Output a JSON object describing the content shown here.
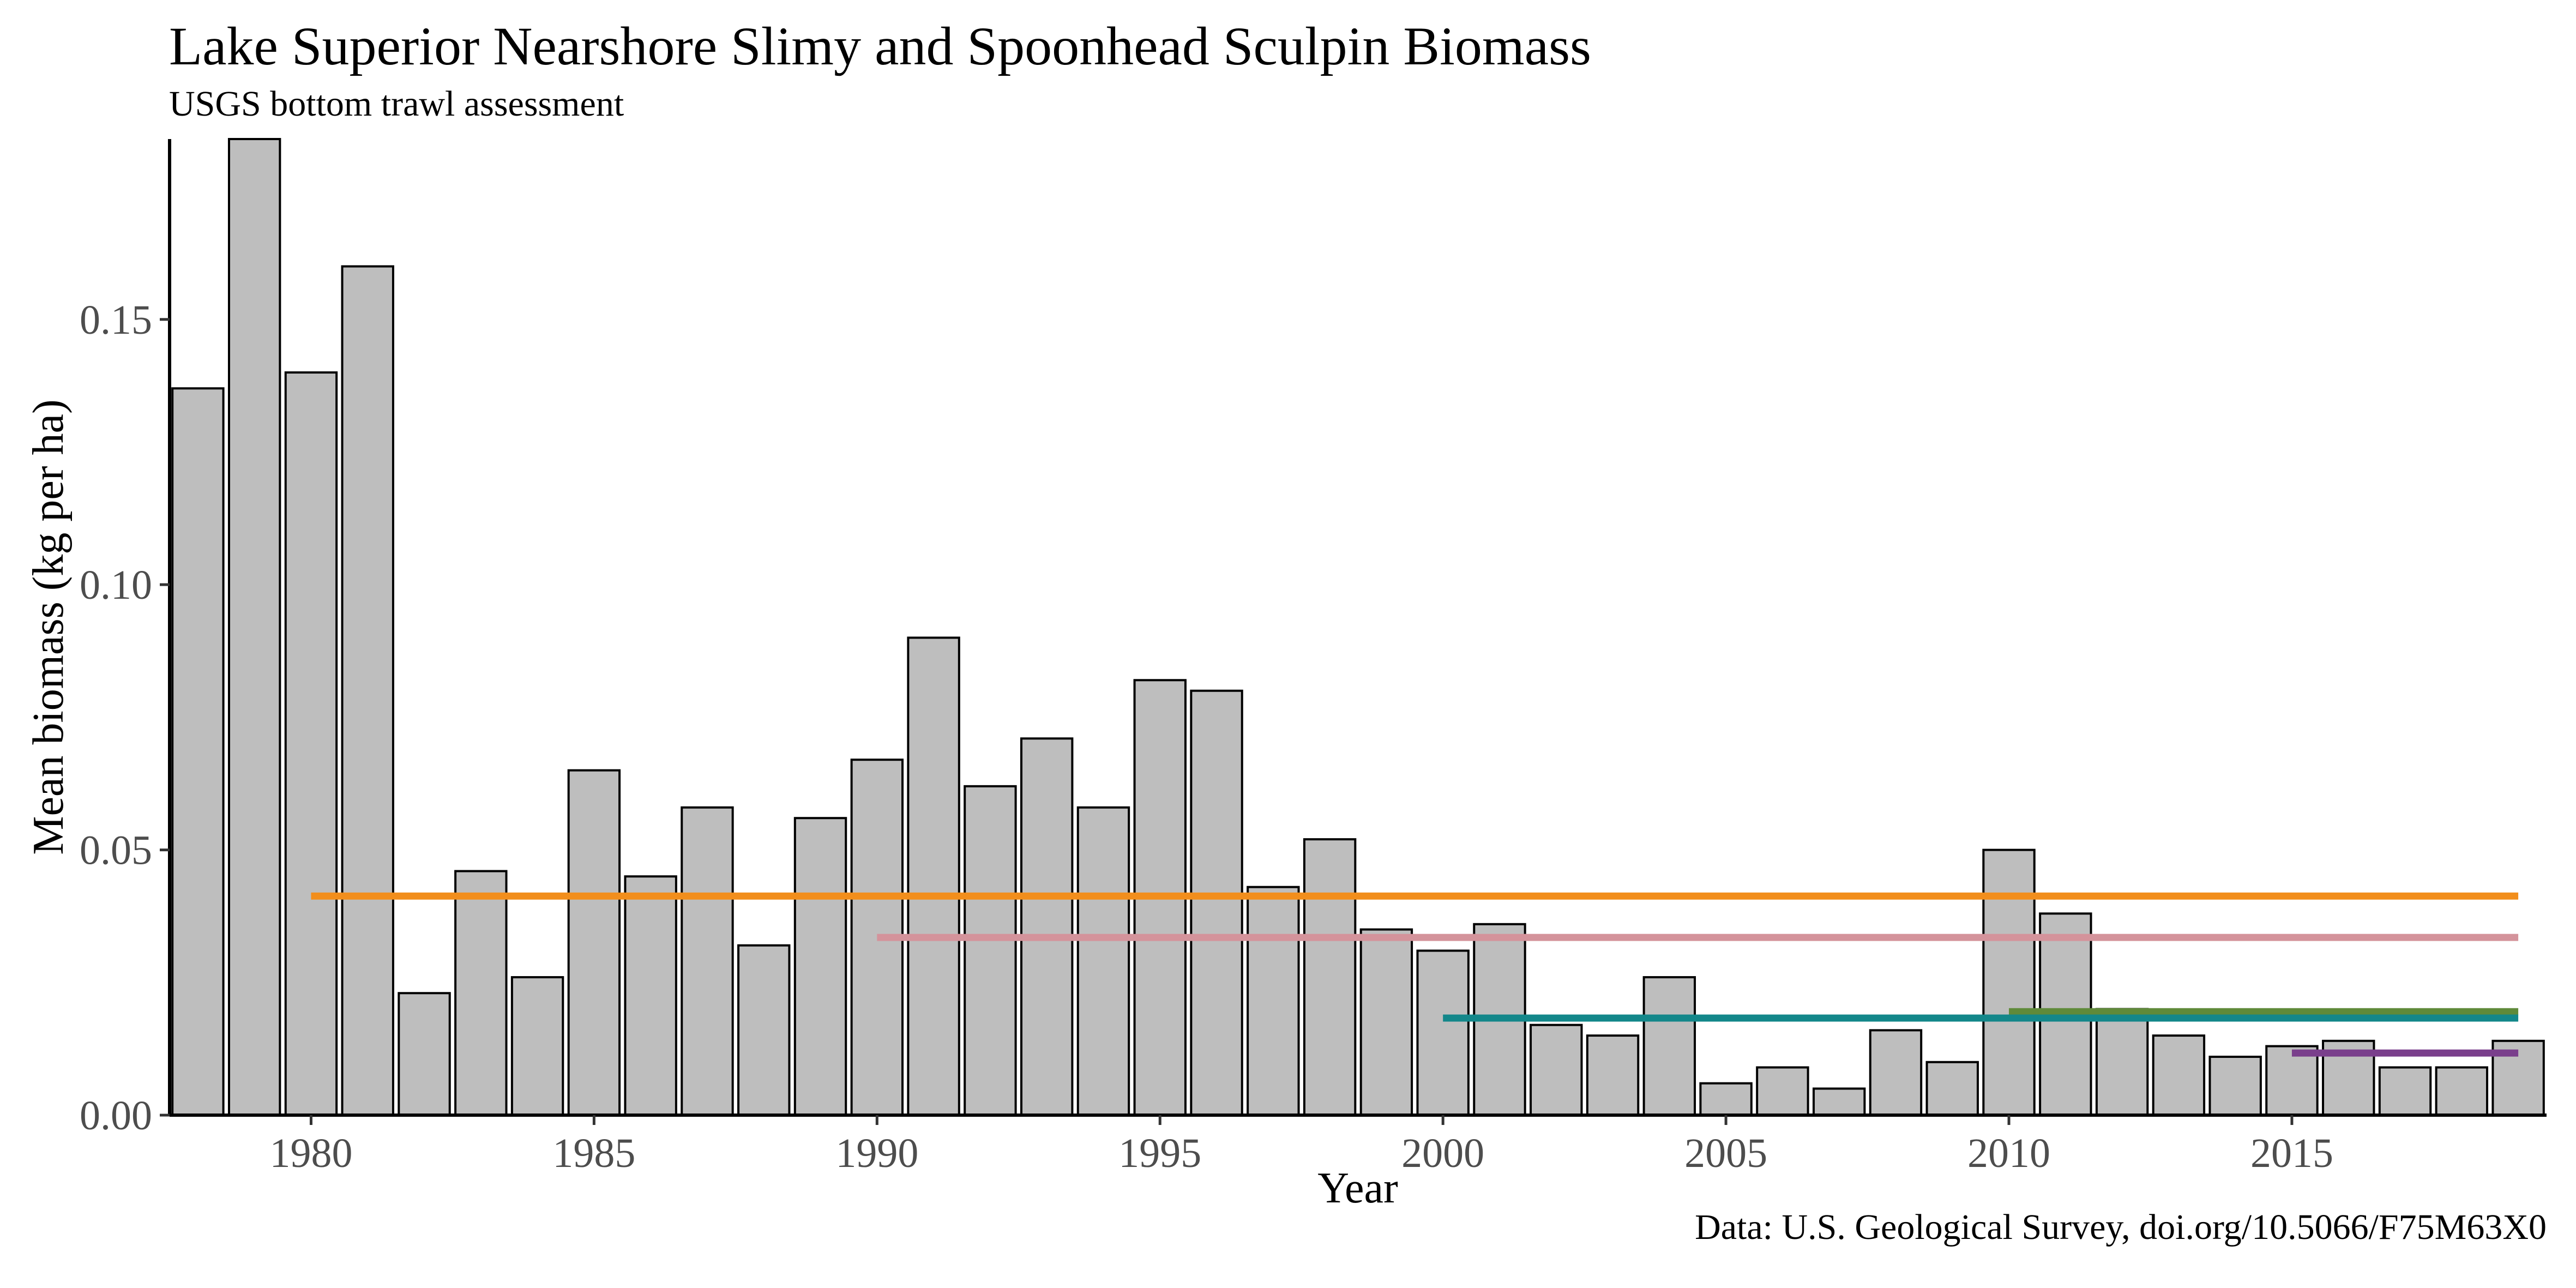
{
  "chart_data": {
    "type": "bar",
    "title": "Lake Superior Nearshore Slimy and Spoonhead Sculpin Biomass",
    "subtitle": "USGS bottom trawl assessment",
    "caption": "Data: U.S. Geological Survey, doi.org/10.5066/F75M63X0",
    "xlabel": "Year",
    "ylabel": "Mean biomass (kg per ha)",
    "x": [
      1978,
      1979,
      1980,
      1981,
      1982,
      1983,
      1984,
      1985,
      1986,
      1987,
      1988,
      1989,
      1990,
      1991,
      1992,
      1993,
      1994,
      1995,
      1996,
      1997,
      1998,
      1999,
      2000,
      2001,
      2002,
      2003,
      2004,
      2005,
      2006,
      2007,
      2008,
      2009,
      2010,
      2011,
      2012,
      2013,
      2014,
      2015,
      2016,
      2017,
      2018,
      2019
    ],
    "values": [
      0.137,
      0.184,
      0.14,
      0.16,
      0.023,
      0.046,
      0.026,
      0.065,
      0.045,
      0.058,
      0.032,
      0.056,
      0.067,
      0.09,
      0.062,
      0.071,
      0.058,
      0.082,
      0.08,
      0.043,
      0.052,
      0.035,
      0.031,
      0.036,
      0.017,
      0.015,
      0.026,
      0.006,
      0.009,
      0.005,
      0.016,
      0.01,
      0.05,
      0.038,
      0.02,
      0.015,
      0.011,
      0.013,
      0.014,
      0.009,
      0.009,
      0.014
    ],
    "xlim": [
      1977.5,
      2019.5
    ],
    "ylim": [
      0,
      0.184
    ],
    "x_ticks": [
      {
        "value": 1980,
        "label": "1980"
      },
      {
        "value": 1985,
        "label": "1985"
      },
      {
        "value": 1990,
        "label": "1990"
      },
      {
        "value": 1995,
        "label": "1995"
      },
      {
        "value": 2000,
        "label": "2000"
      },
      {
        "value": 2005,
        "label": "2005"
      },
      {
        "value": 2010,
        "label": "2010"
      },
      {
        "value": 2015,
        "label": "2015"
      }
    ],
    "y_ticks": [
      {
        "value": 0,
        "label": "0.00"
      },
      {
        "value": 0.05,
        "label": "0.05"
      },
      {
        "value": 0.1,
        "label": "0.10"
      },
      {
        "value": 0.15,
        "label": "0.15"
      }
    ],
    "reference_lines": [
      {
        "x_start": 1980,
        "x_end": 2019,
        "y": 0.0413,
        "color": "#f28e1c"
      },
      {
        "x_start": 1990,
        "x_end": 2019,
        "y": 0.0335,
        "color": "#d4939b"
      },
      {
        "x_start": 2010,
        "x_end": 2019,
        "y": 0.0195,
        "color": "#5f8a3a"
      },
      {
        "x_start": 2000,
        "x_end": 2019,
        "y": 0.0183,
        "color": "#13878a"
      },
      {
        "x_start": 2015,
        "x_end": 2019,
        "y": 0.0117,
        "color": "#7a3f8c"
      }
    ],
    "bar_fill": "#bebebe",
    "bar_outline": "#000000",
    "grid": false
  }
}
